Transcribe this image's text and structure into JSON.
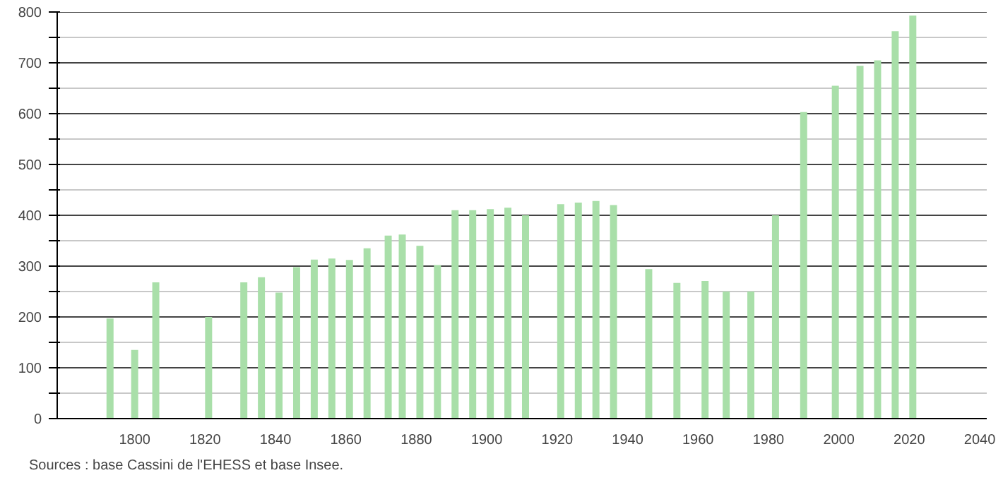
{
  "chart_data": {
    "type": "bar",
    "x": [
      1793,
      1800,
      1806,
      1821,
      1831,
      1836,
      1841,
      1846,
      1851,
      1856,
      1861,
      1866,
      1872,
      1876,
      1881,
      1886,
      1891,
      1896,
      1901,
      1906,
      1911,
      1921,
      1926,
      1931,
      1936,
      1946,
      1954,
      1962,
      1968,
      1975,
      1982,
      1990,
      1999,
      2006,
      2011,
      2016,
      2021
    ],
    "values": [
      197,
      135,
      268,
      200,
      268,
      278,
      248,
      298,
      313,
      315,
      312,
      335,
      360,
      362,
      340,
      302,
      410,
      410,
      412,
      415,
      400,
      422,
      425,
      428,
      420,
      294,
      267,
      271,
      250,
      250,
      400,
      603,
      655,
      694,
      705,
      762,
      793
    ],
    "color": "#a9dfa9",
    "xlim": [
      1778,
      2042
    ],
    "xticks": [
      1800,
      1820,
      1840,
      1860,
      1880,
      1900,
      1920,
      1940,
      1960,
      1980,
      2000,
      2020,
      2040
    ],
    "ylim": [
      0,
      800
    ],
    "yticks": [
      0,
      {
        "value": 50,
        "label": null
      },
      100,
      {
        "value": 150,
        "label": null
      },
      200,
      {
        "value": 250,
        "label": null
      },
      300,
      {
        "value": 350,
        "label": null
      },
      400,
      {
        "value": 450,
        "label": null
      },
      500,
      {
        "value": 550,
        "label": null
      },
      600,
      {
        "value": 650,
        "label": null
      },
      700,
      {
        "value": 750,
        "label": null
      },
      800
    ],
    "grid": "y",
    "annotations": [
      "Sources : base Cassini de l'EHESS et base Insee."
    ]
  }
}
